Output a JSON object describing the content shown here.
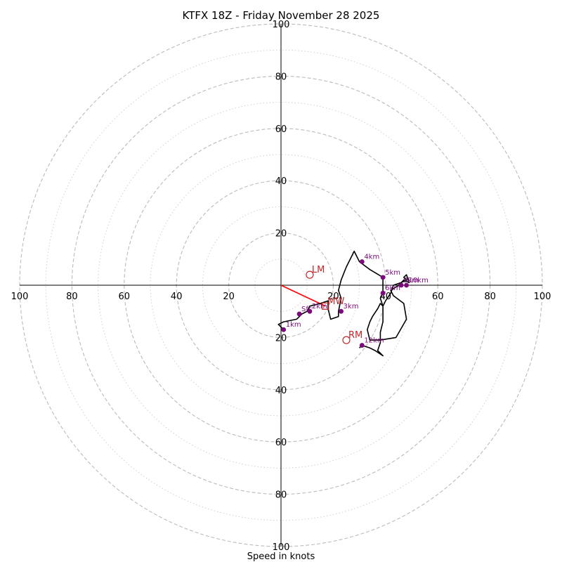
{
  "chart_data": {
    "type": "hodograph",
    "title": "KTFX 18Z - Friday November 28 2025",
    "xlabel": "Speed in knots",
    "range": [
      -100,
      100
    ],
    "ring_major": [
      20,
      40,
      60,
      80,
      100
    ],
    "ring_minor": [
      10,
      30,
      50,
      70,
      90
    ],
    "tick_labels": {
      "left": [
        "100",
        "80",
        "60",
        "40",
        "20"
      ],
      "right": [
        "20",
        "40",
        "60",
        "80",
        "100"
      ],
      "up": [
        "20",
        "40",
        "60",
        "80",
        "100"
      ],
      "down": [
        "20",
        "40",
        "60",
        "80",
        "100"
      ]
    },
    "colors": {
      "trace": "#000000",
      "height_point": "#7b0a7b",
      "motion": "#c0282a",
      "shear": "#ff0000",
      "ring": "#bbbbbb"
    },
    "trace": [
      [
        1,
        -17
      ],
      [
        -1,
        -15
      ],
      [
        1,
        -14
      ],
      [
        6,
        -13
      ],
      [
        8,
        -11
      ],
      [
        10,
        -10
      ],
      [
        11,
        -8
      ],
      [
        15,
        -7
      ],
      [
        18,
        -6
      ],
      [
        18,
        -9
      ],
      [
        19,
        -13
      ],
      [
        22,
        -12
      ],
      [
        22,
        -10
      ],
      [
        23,
        -5
      ],
      [
        22,
        -2
      ],
      [
        23,
        2
      ],
      [
        25,
        7
      ],
      [
        28,
        13
      ],
      [
        30,
        9
      ],
      [
        34,
        6
      ],
      [
        39,
        3
      ],
      [
        39,
        -3
      ],
      [
        38,
        -5
      ],
      [
        39,
        -8
      ],
      [
        40,
        -6
      ],
      [
        42,
        -3
      ],
      [
        43,
        0
      ],
      [
        46,
        1
      ],
      [
        47,
        2
      ],
      [
        49,
        1
      ],
      [
        48,
        4
      ],
      [
        47,
        3
      ],
      [
        48,
        2
      ],
      [
        46,
        1
      ],
      [
        45,
        0
      ],
      [
        42,
        -2
      ],
      [
        43,
        -4
      ],
      [
        47,
        -7
      ],
      [
        48,
        -13
      ],
      [
        44,
        -20
      ],
      [
        38,
        -21
      ],
      [
        34,
        -21
      ],
      [
        33,
        -17
      ],
      [
        34,
        -14
      ],
      [
        35,
        -12
      ],
      [
        37,
        -9
      ],
      [
        38,
        -7
      ],
      [
        39,
        -8
      ],
      [
        39,
        -14
      ],
      [
        38,
        -18
      ],
      [
        38,
        -22
      ],
      [
        37,
        -25
      ],
      [
        39,
        -27
      ],
      [
        36,
        -25
      ],
      [
        34,
        -24
      ],
      [
        31,
        -23
      ],
      [
        30,
        -24
      ]
    ],
    "height_points": [
      {
        "label": "Sfc",
        "u": 7,
        "v": -11
      },
      {
        "label": "1km",
        "u": 1,
        "v": -17
      },
      {
        "label": "2km",
        "u": 11,
        "v": -10
      },
      {
        "label": "3km",
        "u": 23,
        "v": -10
      },
      {
        "label": "4km",
        "u": 31,
        "v": 9
      },
      {
        "label": "5km",
        "u": 39,
        "v": 3
      },
      {
        "label": "6km",
        "u": 39,
        "v": -3
      },
      {
        "label": "9km",
        "u": 46,
        "v": 0
      },
      {
        "label": "10km",
        "u": 48,
        "v": 0
      },
      {
        "label": "12km",
        "u": 31,
        "v": -23
      }
    ],
    "storm_motion": [
      {
        "label": "LM",
        "u": 11,
        "v": 4,
        "marker": "circle"
      },
      {
        "label": "RM",
        "u": 25,
        "v": -21,
        "marker": "circle"
      },
      {
        "label": "MW",
        "u": 17,
        "v": -8,
        "marker": "square"
      }
    ],
    "shear_vector": {
      "from": [
        0,
        0
      ],
      "to": [
        17,
        -8
      ]
    },
    "center_tick_label": "20"
  }
}
